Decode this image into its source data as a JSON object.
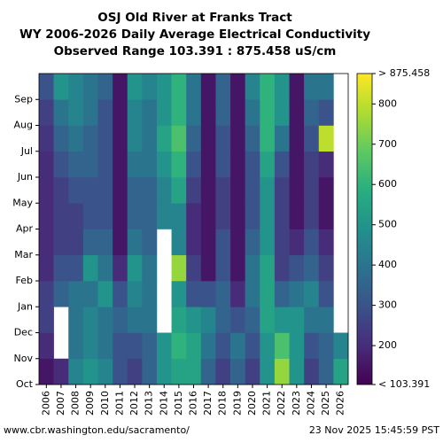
{
  "chart_data": {
    "type": "heatmap",
    "title": [
      "OSJ Old River at Franks Tract",
      "WY 2006-2026 Daily Average Electrical Conductivity",
      "Observed Range 103.391 : 875.458 uS/cm"
    ],
    "categories": [
      "2006",
      "2007",
      "2008",
      "2009",
      "2010",
      "2011",
      "2012",
      "2013",
      "2014",
      "2015",
      "2016",
      "2017",
      "2018",
      "2019",
      "2020",
      "2021",
      "2022",
      "2023",
      "2024",
      "2025",
      "2026"
    ],
    "months": [
      "Oct",
      "Nov",
      "Dec",
      "Jan",
      "Feb",
      "Mar",
      "Apr",
      "May",
      "Jun",
      "Jul",
      "Aug",
      "Sep"
    ],
    "values": [
      [
        150,
        200,
        250,
        250,
        200,
        200,
        200,
        200,
        200,
        220,
        250,
        300
      ],
      [
        200,
        null,
        null,
        350,
        300,
        250,
        250,
        250,
        300,
        350,
        400,
        500
      ],
      [
        450,
        400,
        400,
        400,
        300,
        250,
        250,
        300,
        350,
        400,
        450,
        450
      ],
      [
        500,
        450,
        450,
        400,
        500,
        350,
        300,
        300,
        350,
        350,
        400,
        400
      ],
      [
        450,
        400,
        400,
        500,
        400,
        350,
        300,
        300,
        300,
        300,
        300,
        350
      ],
      [
        300,
        300,
        350,
        300,
        200,
        150,
        150,
        150,
        150,
        150,
        150,
        150
      ],
      [
        250,
        300,
        400,
        450,
        500,
        400,
        350,
        350,
        400,
        450,
        450,
        500
      ],
      [
        350,
        350,
        400,
        400,
        400,
        350,
        350,
        350,
        400,
        400,
        400,
        450
      ],
      [
        500,
        500,
        null,
        null,
        null,
        null,
        450,
        450,
        500,
        550,
        500,
        500
      ],
      [
        550,
        600,
        550,
        500,
        750,
        450,
        450,
        550,
        600,
        650,
        600,
        600
      ],
      [
        550,
        550,
        500,
        300,
        250,
        200,
        200,
        250,
        300,
        350,
        400,
        400
      ],
      [
        350,
        400,
        450,
        300,
        150,
        150,
        150,
        150,
        150,
        150,
        150,
        150
      ],
      [
        250,
        300,
        350,
        350,
        300,
        300,
        250,
        250,
        300,
        300,
        350,
        350
      ],
      [
        350,
        400,
        300,
        200,
        150,
        150,
        150,
        150,
        150,
        150,
        150,
        150
      ],
      [
        250,
        300,
        350,
        400,
        400,
        350,
        300,
        300,
        300,
        350,
        400,
        450
      ],
      [
        500,
        500,
        550,
        550,
        550,
        500,
        500,
        500,
        550,
        600,
        600,
        600
      ],
      [
        750,
        650,
        500,
        350,
        250,
        250,
        250,
        250,
        300,
        400,
        500,
        500
      ],
      [
        500,
        500,
        500,
        400,
        300,
        200,
        150,
        150,
        150,
        150,
        150,
        150
      ],
      [
        250,
        300,
        400,
        450,
        350,
        300,
        250,
        250,
        250,
        300,
        350,
        400
      ],
      [
        350,
        350,
        400,
        300,
        250,
        200,
        150,
        150,
        200,
        800,
        300,
        400
      ],
      [
        550,
        450,
        null,
        null,
        null,
        null,
        null,
        null,
        null,
        null,
        null,
        null
      ]
    ],
    "colormap": "viridis",
    "zlim": [
      103.391,
      875.458
    ],
    "zticks": [
      {
        "value": 103.391,
        "label": "< 103.391"
      },
      200,
      300,
      400,
      500,
      600,
      700,
      800,
      {
        "value": 875.458,
        "label": "> 875.458"
      }
    ],
    "footer_left": "www.cbr.washington.edu/sacramento/",
    "footer_right": "23 Nov 2025 15:45:59 PST"
  }
}
